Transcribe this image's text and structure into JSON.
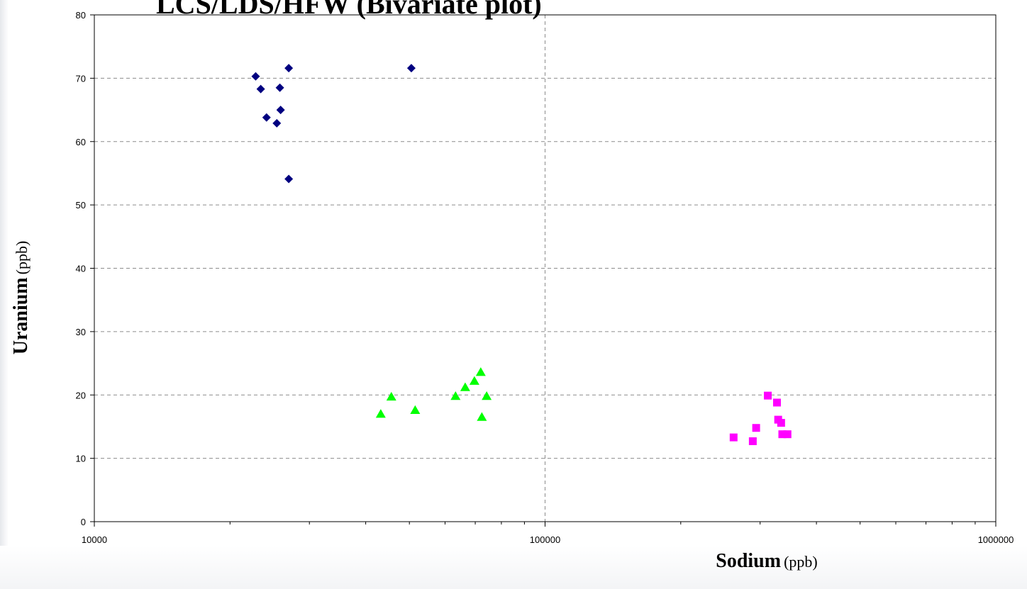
{
  "chart_data": {
    "type": "scatter",
    "title": "LCS/LDS/HFW (Bivariate plot)",
    "xlabel": {
      "main": "Sodium",
      "unit": "(ppb)"
    },
    "ylabel": {
      "main": "Uranium",
      "unit": "(ppb)"
    },
    "xscale": "log",
    "xlim": [
      10000,
      1000000
    ],
    "ylim": [
      0,
      80
    ],
    "xticks": [
      "10000",
      "100000",
      "1000000"
    ],
    "yticks": [
      "0",
      "10",
      "20",
      "30",
      "40",
      "50",
      "60",
      "70",
      "80"
    ],
    "grid": "dashed",
    "legend": "none",
    "series": [
      {
        "marker": "diamond",
        "color": "#000080",
        "x": [
          22800,
          23400,
          24100,
          25400,
          25800,
          25900,
          27000,
          27000,
          50500
        ],
        "y": [
          70.3,
          68.3,
          63.8,
          62.9,
          68.5,
          65.0,
          71.6,
          54.1,
          71.6
        ]
      },
      {
        "marker": "triangle",
        "color": "#00ff00",
        "x": [
          43200,
          45600,
          51500,
          63300,
          66500,
          69700,
          72000,
          72400,
          74200
        ],
        "y": [
          17.0,
          19.7,
          17.6,
          19.8,
          21.2,
          22.2,
          23.6,
          16.5,
          19.8
        ]
      },
      {
        "marker": "square",
        "color": "#ff00ff",
        "x": [
          262000,
          289000,
          294000,
          312000,
          327000,
          329000,
          334000,
          336000,
          345000
        ],
        "y": [
          13.3,
          12.7,
          14.8,
          19.9,
          18.8,
          16.1,
          15.6,
          13.8,
          13.8
        ]
      }
    ]
  }
}
